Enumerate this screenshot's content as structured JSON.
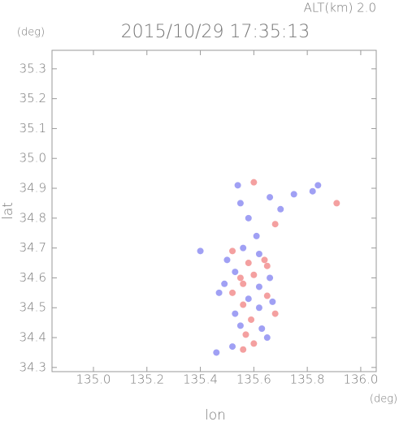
{
  "chart_data": {
    "type": "scatter",
    "title": "2015/10/29 17:35:13",
    "subtitle": "ALT(km) 2.0",
    "x_label": "lon",
    "y_label": "lat",
    "x_unit": "(deg)",
    "y_unit": "(deg)",
    "xlim": [
      134.845,
      136.058
    ],
    "ylim": [
      34.286,
      35.362
    ],
    "xticks": [
      {
        "value": 135,
        "label": "135.0"
      },
      135.2,
      135.4,
      135.6,
      135.8,
      {
        "value": 136,
        "label": "136.0"
      }
    ],
    "yticks": [
      34.3,
      34.4,
      34.5,
      34.6,
      34.7,
      34.8,
      34.9,
      {
        "value": 35,
        "label": "35.0"
      },
      35.1,
      35.2,
      35.3
    ],
    "x": [
      135.6,
      135.54,
      135.66,
      135.55,
      135.7,
      135.58,
      135.75,
      135.91,
      135.68,
      135.52,
      135.56,
      135.62,
      135.5,
      135.58,
      135.65,
      135.53,
      135.6,
      135.66,
      135.49,
      135.56,
      135.62,
      135.52,
      135.58,
      135.65,
      135.56,
      135.62,
      135.53,
      135.68,
      135.59,
      135.55,
      135.63,
      135.57,
      135.65,
      135.6,
      135.52,
      135.46,
      135.56,
      135.47,
      135.64,
      135.55,
      135.67,
      135.4,
      135.84,
      135.82,
      135.61
    ],
    "y": [
      34.92,
      34.91,
      34.87,
      34.85,
      34.83,
      34.8,
      34.88,
      34.85,
      34.78,
      34.69,
      34.7,
      34.68,
      34.66,
      34.65,
      34.64,
      34.62,
      34.61,
      34.6,
      34.58,
      34.58,
      34.57,
      34.55,
      34.53,
      34.54,
      34.51,
      34.5,
      34.48,
      34.48,
      34.46,
      34.44,
      34.43,
      34.41,
      34.4,
      34.38,
      34.37,
      34.35,
      34.36,
      34.55,
      34.66,
      34.6,
      34.52,
      34.69,
      34.91,
      34.89,
      34.74
    ],
    "colors": [
      "#f08080",
      "#8080f0",
      "#8080f0",
      "#8080f0",
      "#8080f0",
      "#8080f0",
      "#8080f0",
      "#f08080",
      "#f08080",
      "#f08080",
      "#8080f0",
      "#8080f0",
      "#8080f0",
      "#f08080",
      "#f08080",
      "#8080f0",
      "#f08080",
      "#8080f0",
      "#8080f0",
      "#f08080",
      "#8080f0",
      "#f08080",
      "#8080f0",
      "#f08080",
      "#f08080",
      "#8080f0",
      "#8080f0",
      "#f08080",
      "#f08080",
      "#8080f0",
      "#8080f0",
      "#f08080",
      "#8080f0",
      "#f08080",
      "#8080f0",
      "#8080f0",
      "#f08080",
      "#8080f0",
      "#f08080",
      "#f08080",
      "#8080f0",
      "#8080f0",
      "#8080f0",
      "#8080f0",
      "#8080f0"
    ]
  }
}
